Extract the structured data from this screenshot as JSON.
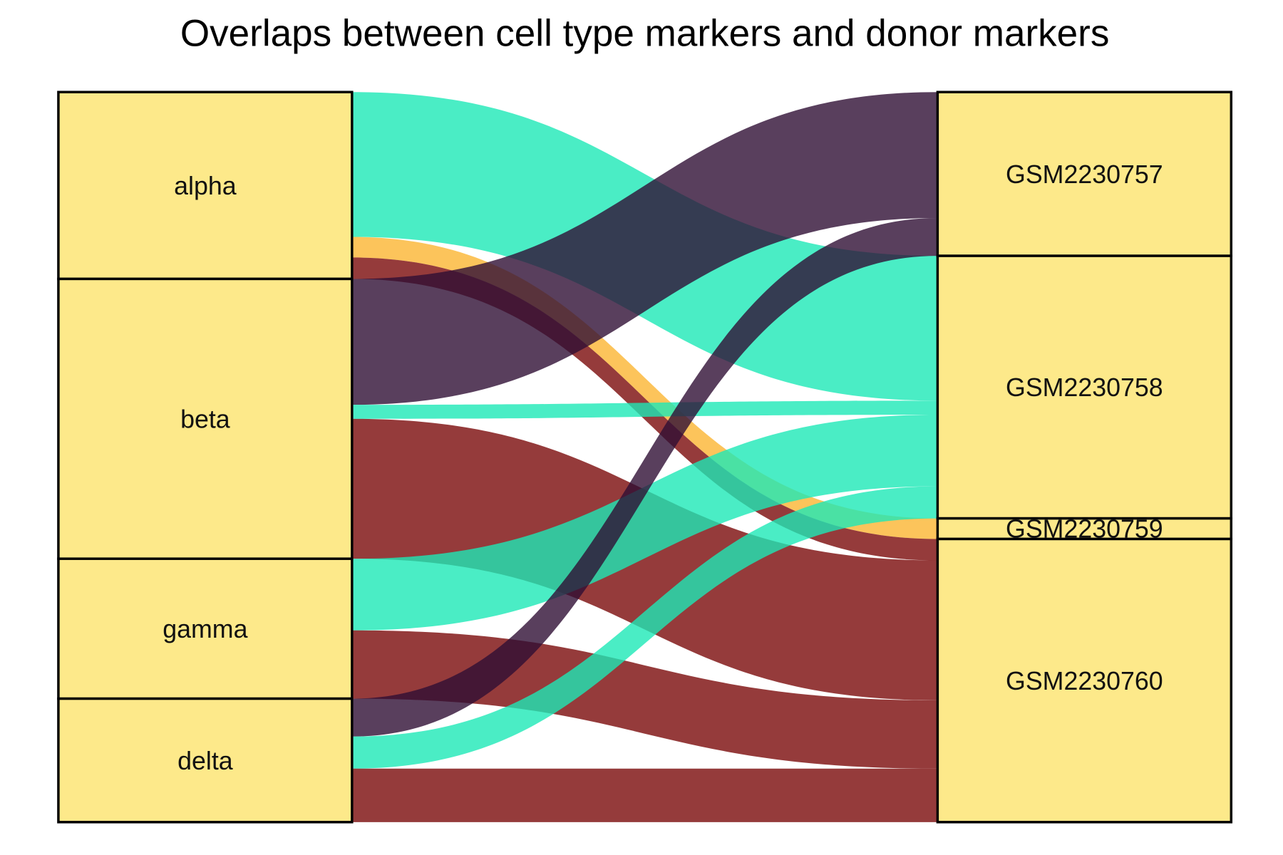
{
  "chart_data": {
    "type": "sankey",
    "title": "Overlaps between cell type markers and donor markers",
    "sources": [
      "alpha",
      "beta",
      "gamma",
      "delta"
    ],
    "targets": [
      "GSM2230757",
      "GSM2230758",
      "GSM2230759",
      "GSM2230760"
    ],
    "node_color": "#fde98a",
    "links": [
      {
        "source": "alpha",
        "target": "GSM2230758",
        "value": 176,
        "color": "#1de9b6"
      },
      {
        "source": "alpha",
        "target": "GSM2230759",
        "value": 25,
        "color": "#fbb532"
      },
      {
        "source": "alpha",
        "target": "GSM2230760",
        "value": 26,
        "color": "#7a0a0a"
      },
      {
        "source": "beta",
        "target": "GSM2230757",
        "value": 153,
        "color": "#300f35"
      },
      {
        "source": "beta",
        "target": "GSM2230758",
        "value": 17,
        "color": "#1de9b6"
      },
      {
        "source": "beta",
        "target": "GSM2230760",
        "value": 170,
        "color": "#7a0a0a"
      },
      {
        "source": "gamma",
        "target": "GSM2230758",
        "value": 87,
        "color": "#1de9b6"
      },
      {
        "source": "gamma",
        "target": "GSM2230760",
        "value": 83,
        "color": "#7a0a0a"
      },
      {
        "source": "delta",
        "target": "GSM2230757",
        "value": 46,
        "color": "#300f35"
      },
      {
        "source": "delta",
        "target": "GSM2230758",
        "value": 39,
        "color": "#1de9b6"
      },
      {
        "source": "delta",
        "target": "GSM2230760",
        "value": 65,
        "color": "#7a0a0a"
      }
    ],
    "link_opacity": 0.8
  }
}
